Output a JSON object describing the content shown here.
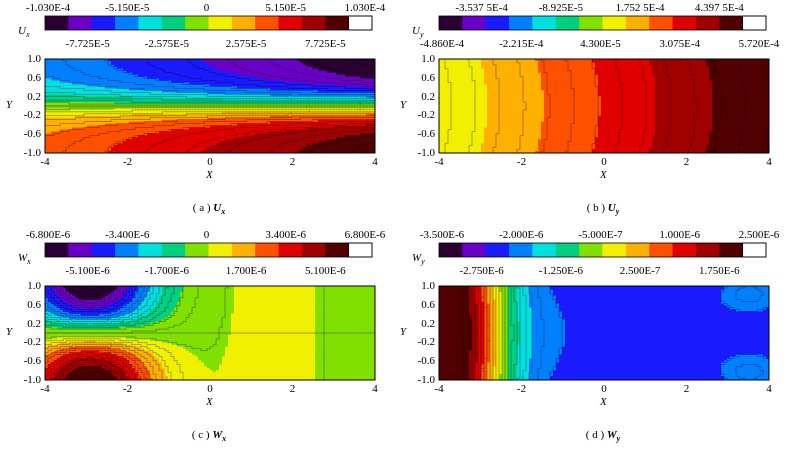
{
  "panels": [
    {
      "id": "a",
      "colorbar_label": "U",
      "colorbar_sub": "x",
      "colorbar_top": [
        "-1.030E-4",
        "-5.150E-5",
        "0",
        "5.150E-5",
        "1.030E-4"
      ],
      "colorbar_bottom": [
        "-7.725E-5",
        "-2.575E-5",
        "2.575E-5",
        "7.725E-5"
      ],
      "y_ticks": [
        "1.0",
        "0.6",
        "0.2",
        "-0.2",
        "-0.6",
        "-1.0"
      ],
      "x_ticks": [
        "-4",
        "-2",
        "0",
        "2",
        "4"
      ],
      "y_label": "Y",
      "x_label": "X",
      "caption_prefix": "( a ) ",
      "caption_var": "U",
      "caption_sub": "x"
    },
    {
      "id": "b",
      "colorbar_label": "U",
      "colorbar_sub": "y",
      "colorbar_top": [
        "-3.537 5E-4",
        "-8.925E-5",
        "1.752 5E-4",
        "4.397 5E-4"
      ],
      "colorbar_bottom": [
        "-4.860E-4",
        "-2.215E-4",
        "4.300E-5",
        "3.075E-4",
        "5.720E-4"
      ],
      "y_ticks": [
        "1.0",
        "0.6",
        "0.2",
        "-0.2",
        "-0.6",
        "-1.0"
      ],
      "x_ticks": [
        "-4",
        "-2",
        "0",
        "2",
        "4"
      ],
      "y_label": "Y",
      "x_label": "X",
      "caption_prefix": "( b ) ",
      "caption_var": "U",
      "caption_sub": "y"
    },
    {
      "id": "c",
      "colorbar_label": "W",
      "colorbar_sub": "x",
      "colorbar_top": [
        "-6.800E-6",
        "-3.400E-6",
        "0",
        "3.400E-6",
        "6.800E-6"
      ],
      "colorbar_bottom": [
        "-5.100E-6",
        "-1.700E-6",
        "1.700E-6",
        "5.100E-6"
      ],
      "y_ticks": [
        "1.0",
        "0.6",
        "0.2",
        "-0.2",
        "-0.6",
        "-1.0"
      ],
      "x_ticks": [
        "-4",
        "-2",
        "0",
        "2",
        "4"
      ],
      "y_label": "Y",
      "x_label": "X",
      "caption_prefix": "( c ) ",
      "caption_var": "W",
      "caption_sub": "x"
    },
    {
      "id": "d",
      "colorbar_label": "W",
      "colorbar_sub": "y",
      "colorbar_top": [
        "-3.500E-6",
        "-2.000E-6",
        "-5.000E-7",
        "1.000E-6",
        "2.500E-6"
      ],
      "colorbar_bottom": [
        "-2.750E-6",
        "-1.250E-6",
        "2.500E-7",
        "1.750E-6"
      ],
      "y_ticks": [
        "1.0",
        "0.6",
        "0.2",
        "-0.2",
        "-0.6",
        "-1.0"
      ],
      "x_ticks": [
        "-4",
        "-2",
        "0",
        "2",
        "4"
      ],
      "y_label": "Y",
      "x_label": "X",
      "caption_prefix": "( d ) ",
      "caption_var": "W",
      "caption_sub": "y"
    }
  ],
  "colormap": [
    "#2a0033",
    "#6a00c8",
    "#1a1aff",
    "#0080ff",
    "#00e0e0",
    "#00d080",
    "#80e000",
    "#f0f000",
    "#ffb000",
    "#ff5000",
    "#e00000",
    "#a00000",
    "#500000"
  ],
  "chart_data": [
    {
      "type": "heatmap",
      "panel": "a",
      "variable": "Ux",
      "x_range": [
        -4,
        4
      ],
      "y_range": [
        -1.0,
        1.0
      ],
      "color_range": [
        -0.000103,
        0.000103
      ],
      "pattern": "antisymmetric in Y: negative values (purple/blue) near Y=1 growing toward X=4, positive (red) near Y=-1; near-zero (yellow-green) band along Y=0"
    },
    {
      "type": "heatmap",
      "panel": "b",
      "variable": "Uy",
      "x_range": [
        -4,
        4
      ],
      "y_range": [
        -1.0,
        1.0
      ],
      "color_range": [
        -0.000486,
        0.000572
      ],
      "pattern": "varies mainly along X: yellow-green at X=-4 increasing to dark red at X=4; contour lines nearly vertical"
    },
    {
      "type": "heatmap",
      "panel": "c",
      "variable": "Wx",
      "x_range": [
        -4,
        4
      ],
      "y_range": [
        -1.0,
        1.0
      ],
      "color_range": [
        -6.8e-06,
        6.8e-06
      ],
      "pattern": "negative lobe (purple/blue) near Y=1, X≈-3; positive lobe (dark red) near Y=-1, X≈-3; near-zero (yellow) for X>0"
    },
    {
      "type": "heatmap",
      "panel": "d",
      "variable": "Wy",
      "x_range": [
        -4,
        4
      ],
      "y_range": [
        -1.0,
        1.0
      ],
      "color_range": [
        -3.5e-06,
        2.5e-06
      ],
      "pattern": "positive (red) at X≈-4 to -3.5, decreasing through yellow/green to blue by X≈-1; uniform blue for X>0 with small lighter patches at corners"
    }
  ]
}
